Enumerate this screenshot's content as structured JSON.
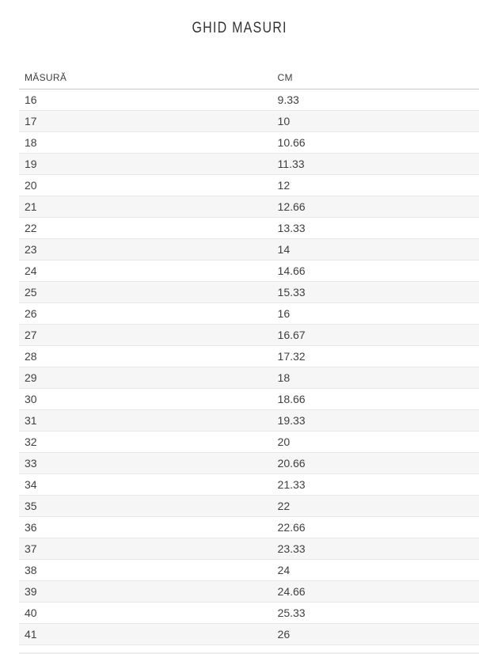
{
  "page": {
    "title": "GHID MASURI"
  },
  "table": {
    "headers": [
      {
        "label": "MĂSURĂ"
      },
      {
        "label": "CM"
      }
    ],
    "rows": [
      {
        "size": "16",
        "cm": "9.33"
      },
      {
        "size": "17",
        "cm": "10"
      },
      {
        "size": "18",
        "cm": "10.66"
      },
      {
        "size": "19",
        "cm": "11.33"
      },
      {
        "size": "20",
        "cm": "12"
      },
      {
        "size": "21",
        "cm": "12.66"
      },
      {
        "size": "22",
        "cm": "13.33"
      },
      {
        "size": "23",
        "cm": "14"
      },
      {
        "size": "24",
        "cm": "14.66"
      },
      {
        "size": "25",
        "cm": "15.33"
      },
      {
        "size": "26",
        "cm": "16"
      },
      {
        "size": "27",
        "cm": "16.67"
      },
      {
        "size": "28",
        "cm": "17.32"
      },
      {
        "size": "29",
        "cm": "18"
      },
      {
        "size": "30",
        "cm": "18.66"
      },
      {
        "size": "31",
        "cm": "19.33"
      },
      {
        "size": "32",
        "cm": "20"
      },
      {
        "size": "33",
        "cm": "20.66"
      },
      {
        "size": "34",
        "cm": "21.33"
      },
      {
        "size": "35",
        "cm": "22"
      },
      {
        "size": "36",
        "cm": "22.66"
      },
      {
        "size": "37",
        "cm": "23.33"
      },
      {
        "size": "38",
        "cm": "24"
      },
      {
        "size": "39",
        "cm": "24.66"
      },
      {
        "size": "40",
        "cm": "25.33"
      },
      {
        "size": "41",
        "cm": "26"
      }
    ]
  },
  "colors": {
    "stripe": "#f6f6f6",
    "row_border": "#e8e8e8",
    "header_border": "#c6c6c6",
    "text": "#3f3f3f",
    "title_text": "#333333"
  }
}
